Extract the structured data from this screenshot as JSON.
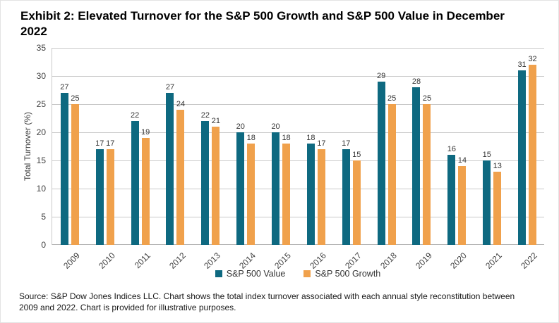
{
  "header": {
    "title": "Exhibit 2: Elevated Turnover for the S&P 500 Growth and S&P 500 Value in December 2022"
  },
  "chart_data": {
    "type": "bar",
    "categories": [
      "2009",
      "2010",
      "2011",
      "2012",
      "2013",
      "2014",
      "2015",
      "2016",
      "2017",
      "2018",
      "2019",
      "2020",
      "2021",
      "2022"
    ],
    "series": [
      {
        "name": "S&P 500 Value",
        "color": "#0E6980",
        "values": [
          27,
          17,
          22,
          27,
          22,
          20,
          20,
          18,
          17,
          29,
          28,
          16,
          15,
          31
        ]
      },
      {
        "name": "S&P 500 Growth",
        "color": "#F0A14C",
        "values": [
          25,
          17,
          19,
          24,
          21,
          18,
          18,
          17,
          15,
          25,
          25,
          14,
          13,
          32
        ]
      }
    ],
    "title": "",
    "xlabel": "",
    "ylabel": "Total Turnover (%)",
    "ylim": [
      0,
      35
    ],
    "yticks": [
      0,
      5,
      10,
      15,
      20,
      25,
      30,
      35
    ],
    "grid": "horizontal",
    "legend_position": "bottom",
    "data_labels": true
  },
  "footer": {
    "source": "Source: S&P Dow Jones Indices LLC. Chart shows the total index turnover associated with each annual style reconstitution between 2009 and 2022. Chart is provided for illustrative purposes."
  }
}
